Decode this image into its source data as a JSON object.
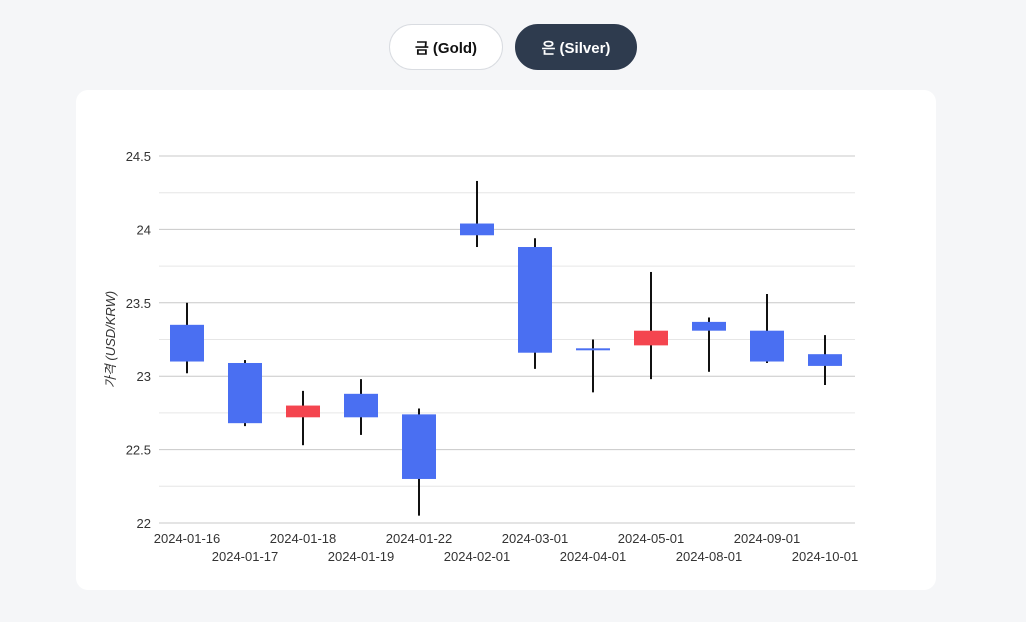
{
  "tabs": {
    "gold_label": "금 (Gold)",
    "silver_label": "은 (Silver)",
    "active": "silver"
  },
  "colors": {
    "increasing": "#4a6ff2",
    "decreasing": "#f4454f",
    "active_tab_bg": "#2e3b4e",
    "grid": "#cccccc"
  },
  "chart_data": {
    "type": "candlestick",
    "ylabel": "가격 (USD/KRW)",
    "ylim": [
      22,
      24.5
    ],
    "yticks": [
      22,
      22.5,
      23,
      23.5,
      24,
      24.5
    ],
    "ytick_labels": [
      "22",
      "22.5",
      "23",
      "23.5",
      "24",
      "24.5"
    ],
    "categories": [
      "2024-01-16",
      "2024-01-17",
      "2024-01-18",
      "2024-01-19",
      "2024-01-22",
      "2024-02-01",
      "2024-03-01",
      "2024-04-01",
      "2024-05-01",
      "2024-08-01",
      "2024-09-01",
      "2024-10-01"
    ],
    "candles": [
      {
        "date": "2024-01-16",
        "open": 23.1,
        "high": 23.5,
        "low": 23.02,
        "close": 23.35
      },
      {
        "date": "2024-01-17",
        "open": 22.68,
        "high": 23.11,
        "low": 22.66,
        "close": 23.09
      },
      {
        "date": "2024-01-18",
        "open": 22.8,
        "high": 22.9,
        "low": 22.53,
        "close": 22.72
      },
      {
        "date": "2024-01-19",
        "open": 22.72,
        "high": 22.98,
        "low": 22.6,
        "close": 22.88
      },
      {
        "date": "2024-01-22",
        "open": 22.3,
        "high": 22.78,
        "low": 22.05,
        "close": 22.74
      },
      {
        "date": "2024-02-01",
        "open": 23.96,
        "high": 24.33,
        "low": 23.88,
        "close": 24.04
      },
      {
        "date": "2024-03-01",
        "open": 23.16,
        "high": 23.94,
        "low": 23.05,
        "close": 23.88
      },
      {
        "date": "2024-04-01",
        "open": 23.18,
        "high": 23.25,
        "low": 22.89,
        "close": 23.19
      },
      {
        "date": "2024-05-01",
        "open": 23.31,
        "high": 23.71,
        "low": 22.98,
        "close": 23.21
      },
      {
        "date": "2024-08-01",
        "open": 23.31,
        "high": 23.4,
        "low": 23.03,
        "close": 23.37
      },
      {
        "date": "2024-09-01",
        "open": 23.1,
        "high": 23.56,
        "low": 23.09,
        "close": 23.31
      },
      {
        "date": "2024-10-01",
        "open": 23.07,
        "high": 23.28,
        "low": 22.94,
        "close": 23.15
      }
    ],
    "grid": true,
    "legend": false
  }
}
